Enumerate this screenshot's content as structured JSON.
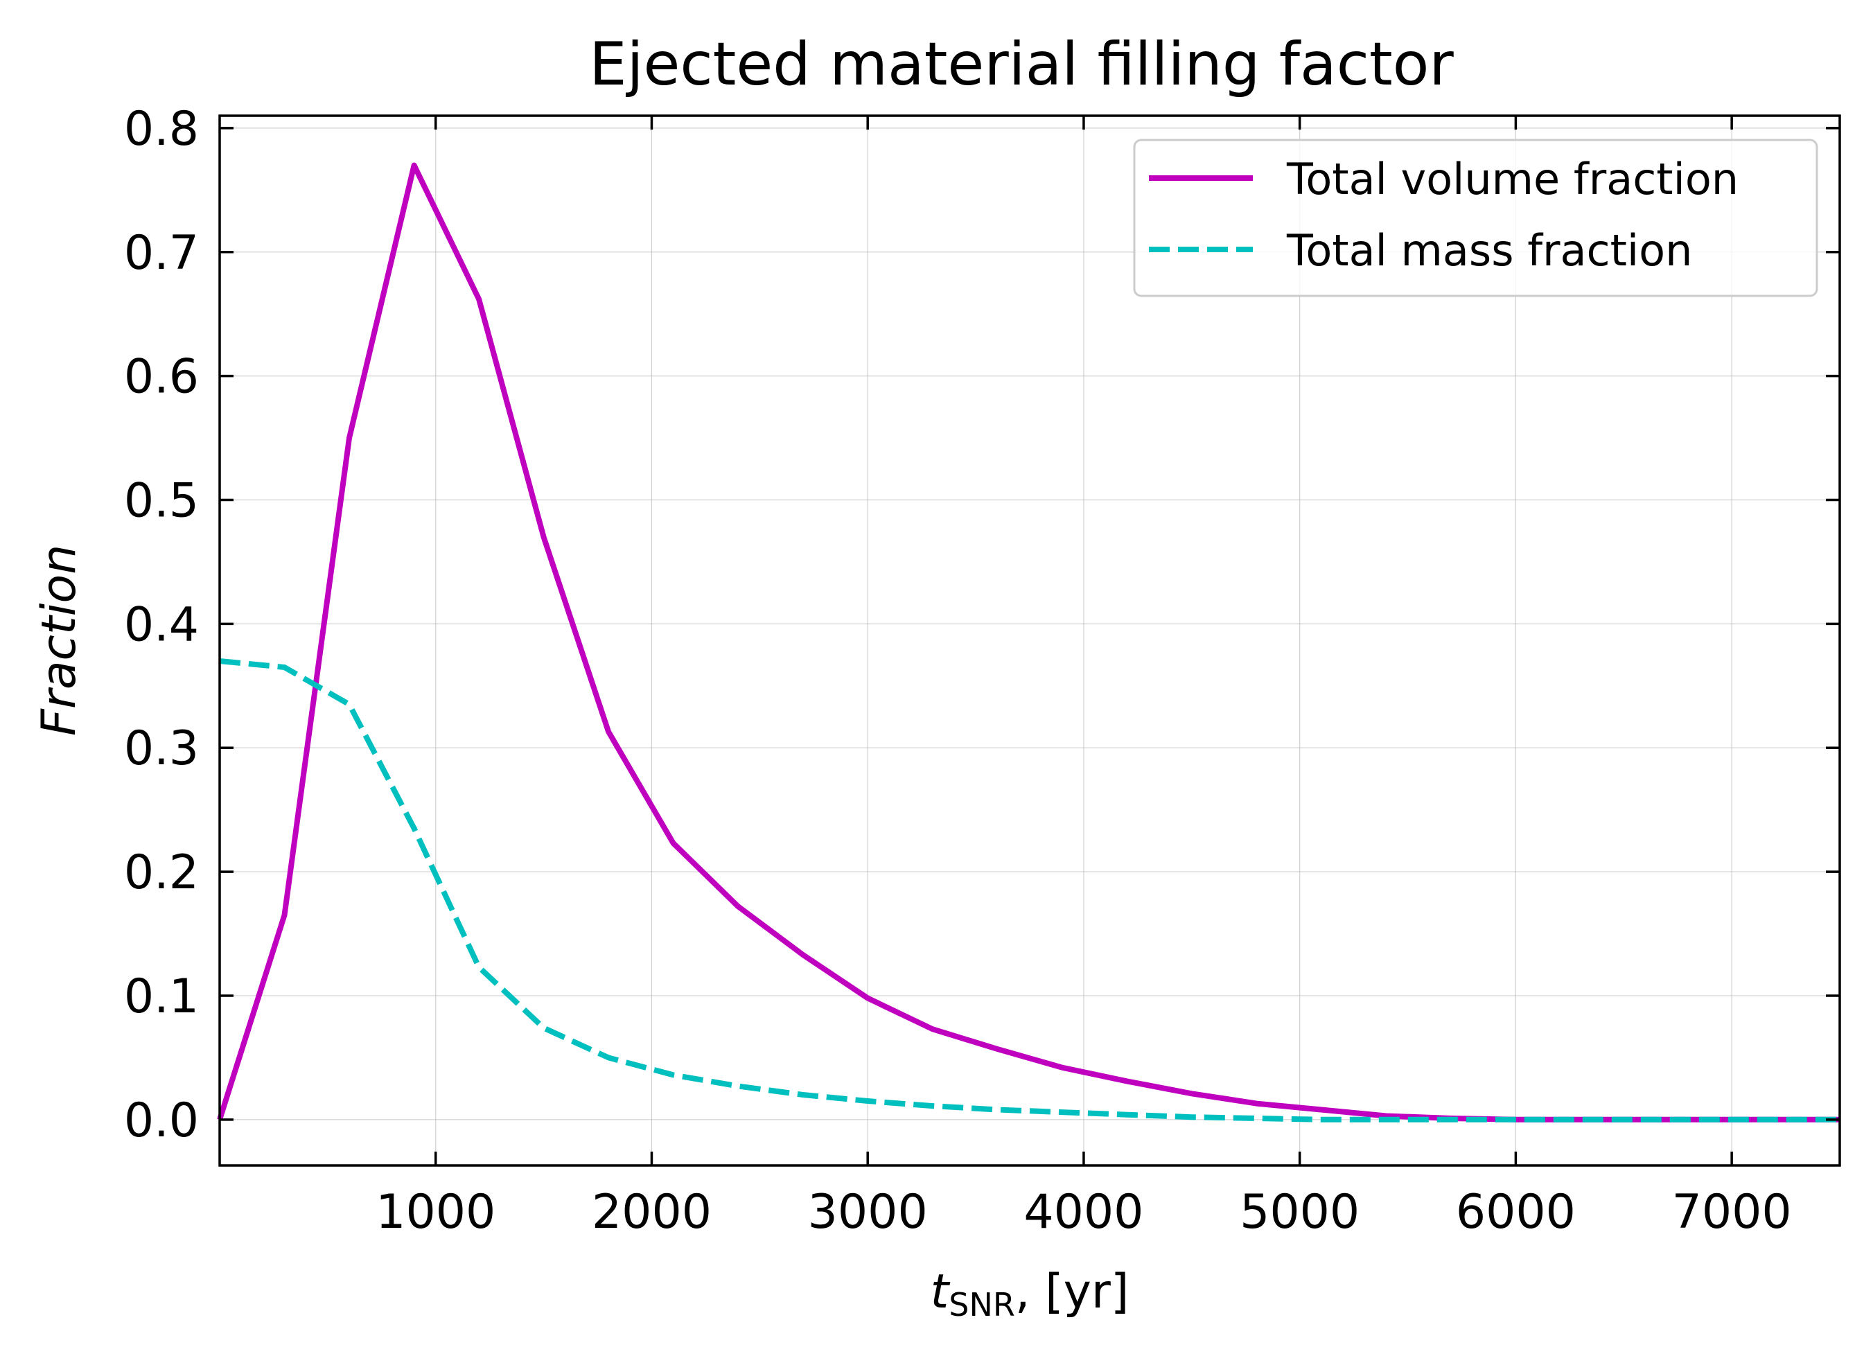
{
  "chart_data": {
    "type": "line",
    "title": "Ejected material filling factor",
    "xlabel_main": "t",
    "xlabel_sub": "SNR",
    "xlabel_suffix": ", [yr]",
    "ylabel": "Fraction",
    "xlim": [
      0,
      7500
    ],
    "ylim": [
      -0.037,
      0.81
    ],
    "grid": true,
    "legend_position": "top-right",
    "xticks": [
      1000,
      2000,
      3000,
      4000,
      5000,
      6000,
      7000
    ],
    "xtick_labels": [
      "1000",
      "2000",
      "3000",
      "4000",
      "5000",
      "6000",
      "7000"
    ],
    "yticks": [
      0.0,
      0.1,
      0.2,
      0.3,
      0.4,
      0.5,
      0.6,
      0.7,
      0.8
    ],
    "ytick_labels": [
      "0.0",
      "0.1",
      "0.2",
      "0.3",
      "0.4",
      "0.5",
      "0.6",
      "0.7",
      "0.8"
    ],
    "x": [
      0,
      300,
      600,
      900,
      1200,
      1500,
      1800,
      2100,
      2400,
      2700,
      3000,
      3300,
      3600,
      3900,
      4200,
      4500,
      4800,
      5100,
      5400,
      5700,
      6000,
      6300,
      6600,
      6900,
      7200,
      7500
    ],
    "series": [
      {
        "name": "Total volume fraction",
        "color": "#bf00bf",
        "style": "solid",
        "values": [
          0.0,
          0.165,
          0.55,
          0.77,
          0.662,
          0.47,
          0.313,
          0.223,
          0.172,
          0.133,
          0.098,
          0.073,
          0.057,
          0.042,
          0.031,
          0.021,
          0.013,
          0.008,
          0.003,
          0.001,
          0.0,
          0.0,
          0.0,
          0.0,
          0.0,
          0.0
        ]
      },
      {
        "name": "Total mass fraction",
        "color": "#00bfbf",
        "style": "dashed",
        "values": [
          0.37,
          0.365,
          0.335,
          0.235,
          0.123,
          0.074,
          0.05,
          0.036,
          0.027,
          0.02,
          0.015,
          0.011,
          0.008,
          0.006,
          0.004,
          0.002,
          0.001,
          0.0,
          0.0,
          0.0,
          0.0,
          0.0,
          0.0,
          0.0,
          0.0,
          0.0
        ]
      }
    ]
  }
}
